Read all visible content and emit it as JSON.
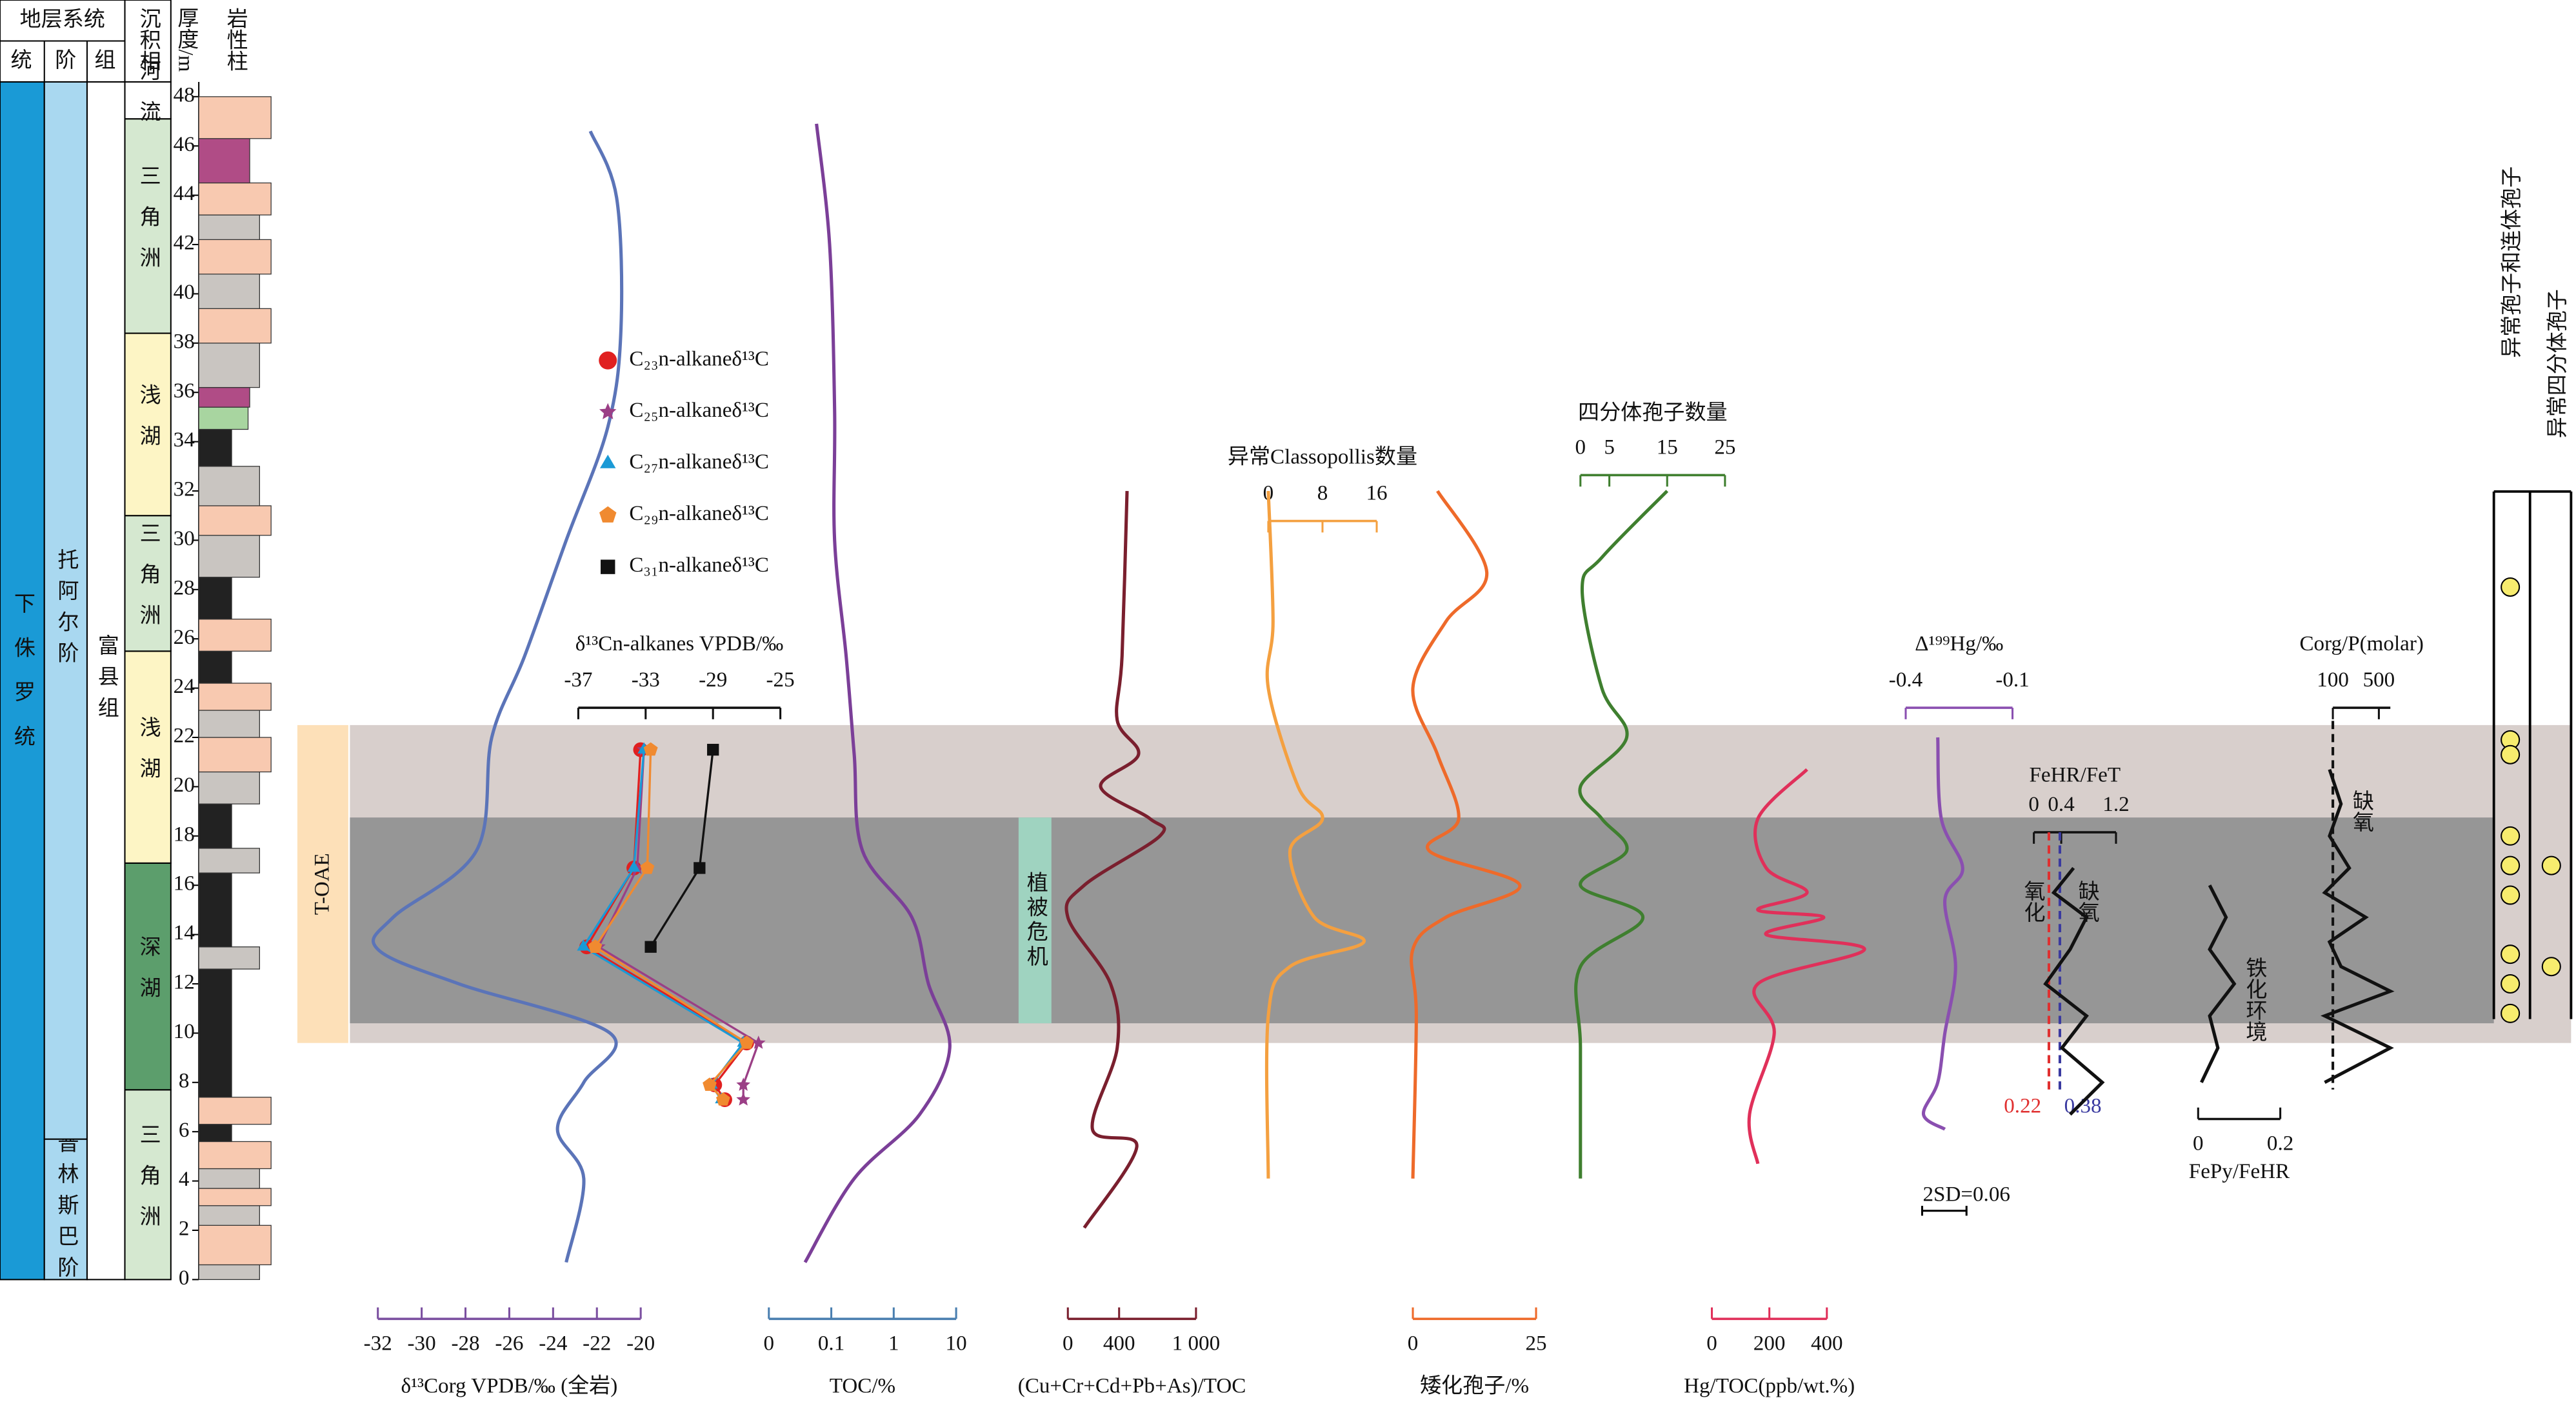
{
  "strat_column": {
    "header": {
      "system": "地层系统",
      "series": "统",
      "stage": "阶",
      "formation": "组",
      "facies": "沉积相",
      "thickness": "厚度/m",
      "lithology": "岩性柱"
    },
    "ylim": [
      0,
      48
    ],
    "yticks": [
      0,
      2,
      4,
      6,
      8,
      10,
      12,
      14,
      16,
      18,
      20,
      22,
      24,
      26,
      28,
      30,
      32,
      34,
      36,
      38,
      40,
      42,
      44,
      46,
      48
    ],
    "series": [
      {
        "label": "下侏罗统",
        "from": 0,
        "to": 48,
        "color": "#1a9ad6"
      }
    ],
    "stages": [
      {
        "label": "普林斯巴阶",
        "from": 0,
        "to": 5.7,
        "color": "#a9d8f0"
      },
      {
        "label": "托阿尔阶",
        "from": 5.7,
        "to": 48,
        "color": "#a9d8f0"
      }
    ],
    "formations": [
      {
        "label": "富县组",
        "from": 0,
        "to": 48,
        "color": "#ffffff"
      }
    ],
    "facies": [
      {
        "label": "三角洲",
        "from": 0,
        "to": 7.7,
        "color": "#d5e8d0"
      },
      {
        "label": "深湖",
        "from": 7.7,
        "to": 16.9,
        "color": "#5c9e6c"
      },
      {
        "label": "浅湖",
        "from": 16.9,
        "to": 25.5,
        "color": "#fdf5c5"
      },
      {
        "label": "三角洲",
        "from": 25.5,
        "to": 31,
        "color": "#d5e8d0"
      },
      {
        "label": "浅湖",
        "from": 31,
        "to": 38.4,
        "color": "#fdf5c5"
      },
      {
        "label": "三角洲",
        "from": 38.4,
        "to": 47.1,
        "color": "#d5e8d0"
      },
      {
        "label": "河流",
        "from": 47.1,
        "to": 48,
        "color": "#ffffff"
      }
    ],
    "lithology": [
      {
        "from": 0,
        "to": 0.6,
        "color": "#c9c5c1"
      },
      {
        "from": 0.6,
        "to": 2.2,
        "color": "#f8c9b0"
      },
      {
        "from": 2.2,
        "to": 3,
        "color": "#c9c5c1"
      },
      {
        "from": 3,
        "to": 3.7,
        "color": "#f8c9b0"
      },
      {
        "from": 3.7,
        "to": 4.5,
        "color": "#c9c5c1"
      },
      {
        "from": 4.5,
        "to": 5.6,
        "color": "#f8c9b0"
      },
      {
        "from": 5.6,
        "to": 6.3,
        "color": "#222222"
      },
      {
        "from": 6.3,
        "to": 7.4,
        "color": "#f8c9b0"
      },
      {
        "from": 7.4,
        "to": 12.6,
        "color": "#222222"
      },
      {
        "from": 12.6,
        "to": 13.5,
        "color": "#c9c5c1"
      },
      {
        "from": 13.5,
        "to": 16.5,
        "color": "#222222"
      },
      {
        "from": 16.5,
        "to": 17.5,
        "color": "#c9c5c1"
      },
      {
        "from": 17.5,
        "to": 19.3,
        "color": "#222222"
      },
      {
        "from": 19.3,
        "to": 20.6,
        "color": "#c9c5c1"
      },
      {
        "from": 20.6,
        "to": 22,
        "color": "#f8c9b0"
      },
      {
        "from": 22,
        "to": 23.1,
        "color": "#c9c5c1"
      },
      {
        "from": 23.1,
        "to": 24.2,
        "color": "#f8c9b0"
      },
      {
        "from": 24.2,
        "to": 25.5,
        "color": "#222222"
      },
      {
        "from": 25.5,
        "to": 26.8,
        "color": "#f8c9b0"
      },
      {
        "from": 26.8,
        "to": 28.5,
        "color": "#222222"
      },
      {
        "from": 28.5,
        "to": 30.2,
        "color": "#c9c5c1"
      },
      {
        "from": 30.2,
        "to": 31.4,
        "color": "#f8c9b0"
      },
      {
        "from": 31.4,
        "to": 33,
        "color": "#c9c5c1"
      },
      {
        "from": 33,
        "to": 34.5,
        "color": "#222222"
      },
      {
        "from": 34.5,
        "to": 35.4,
        "color": "#a8d5a0"
      },
      {
        "from": 35.4,
        "to": 36.2,
        "color": "#b04c86"
      },
      {
        "from": 36.2,
        "to": 38,
        "color": "#c9c5c1"
      },
      {
        "from": 38,
        "to": 39.4,
        "color": "#f8c9b0"
      },
      {
        "from": 39.4,
        "to": 40.8,
        "color": "#c9c5c1"
      },
      {
        "from": 40.8,
        "to": 42.2,
        "color": "#f8c9b0"
      },
      {
        "from": 42.2,
        "to": 43.2,
        "color": "#c9c5c1"
      },
      {
        "from": 43.2,
        "to": 44.5,
        "color": "#f8c9b0"
      },
      {
        "from": 44.5,
        "to": 46.3,
        "color": "#b04c86"
      },
      {
        "from": 46.3,
        "to": 48,
        "color": "#f8c9b0"
      }
    ]
  },
  "zones": {
    "toae": {
      "label": "T-OAE",
      "from": 9.6,
      "to": 22.5,
      "color": "#d8cfcc"
    },
    "crisis": {
      "label": "植被危机",
      "from": 10.4,
      "to": 18.75,
      "color": "#969696"
    }
  },
  "spores": {
    "color": "#f7ec6e",
    "columns": [
      {
        "label": "异常孢子和连体孢子",
        "depths": [
          28.1,
          21.9,
          21.3,
          18.0,
          16.8,
          15.6,
          13.2,
          12.0,
          10.8
        ]
      },
      {
        "label": "异常四分体孢子",
        "depths": [
          16.8,
          12.7
        ]
      }
    ]
  },
  "chart_data": [
    {
      "type": "line",
      "title": "δ¹³Corg VPDB/‰ (全岩)",
      "axis_color": "#7b4fa0",
      "xlim": [
        -32,
        -20
      ],
      "xticks": [
        -32,
        -30,
        -28,
        -26,
        -24,
        -22,
        -20
      ],
      "series": [
        {
          "color": "#5b74b8",
          "depth": [
            46.6,
            43.9,
            38.6,
            34.6,
            30.0,
            25.3,
            22.0,
            17.4,
            14.7,
            13.4,
            12.0,
            10.0,
            8.0,
            6.1,
            4.1,
            0.7
          ],
          "values": [
            -22.3,
            -21.1,
            -20.9,
            -21.5,
            -23.4,
            -25.3,
            -26.8,
            -27.5,
            -31.3,
            -32,
            -28.3,
            -21.4,
            -22.6,
            -23.8,
            -22.6,
            -23.4
          ]
        }
      ]
    },
    {
      "type": "scatter",
      "title": "δ¹³Cn-alkanes VPDB/‰",
      "axis_color": "#111111",
      "xlim": [
        -37,
        -25
      ],
      "xticks": [
        -37,
        -33,
        -29,
        -25
      ],
      "series": [
        {
          "name": "C₂₃n-alkaneδ¹³C",
          "color": "#e02020",
          "marker": "circle",
          "depth": [
            21.5,
            16.7,
            13.5,
            9.6,
            7.9,
            7.3
          ],
          "values": [
            -33.3,
            -33.7,
            -36.5,
            -27.0,
            -28.9,
            -28.3
          ]
        },
        {
          "name": "C₂₅n-alkaneδ¹³C",
          "color": "#9b3f86",
          "marker": "star",
          "depth": [
            21.5,
            16.7,
            13.5,
            9.6,
            7.9,
            7.3
          ],
          "values": [
            -33.1,
            -33.5,
            -35.8,
            -26.3,
            -27.2,
            -27.2
          ]
        },
        {
          "name": "C₂₇n-alkaneδ¹³C",
          "color": "#1a9ad6",
          "marker": "triangle",
          "depth": [
            21.5,
            16.7,
            13.5,
            9.6,
            7.9,
            7.3
          ],
          "values": [
            -33.1,
            -33.7,
            -36.7,
            -27.2,
            -29.1,
            -28.5
          ]
        },
        {
          "name": "C₂₉n-alkaneδ¹³C",
          "color": "#f08a30",
          "marker": "pentagon",
          "depth": [
            21.5,
            16.7,
            13.5,
            9.6,
            7.9,
            7.3
          ],
          "values": [
            -32.7,
            -32.9,
            -36.0,
            -27.0,
            -29.2,
            -28.4
          ]
        },
        {
          "name": "C₃₁n-alkaneδ¹³C",
          "color": "#111111",
          "marker": "square",
          "depth": [
            21.5,
            16.7,
            13.5
          ],
          "values": [
            -29.0,
            -29.8,
            -32.7
          ]
        }
      ]
    },
    {
      "type": "line",
      "title": "TOC/%",
      "axis_color": "#4a7fb0",
      "log": true,
      "xlim": [
        0.01,
        10
      ],
      "xticks": [
        {
          "value": 0.01,
          "label": "0"
        },
        0.1,
        1,
        10
      ],
      "series": [
        {
          "color": "#7b3f98",
          "depth": [
            46.9,
            42.0,
            35.3,
            30.0,
            25.3,
            21.3,
            17.4,
            14.7,
            12.0,
            9.4,
            6.7,
            4.1,
            0.7
          ],
          "values": [
            0.058,
            0.094,
            0.113,
            0.113,
            0.173,
            0.233,
            0.316,
            1.95,
            3.6,
            7.9,
            2.6,
            0.233,
            0.038
          ]
        }
      ]
    },
    {
      "type": "line",
      "title": "(Cu+Cr+Cd+Pb+As)/TOC",
      "axis_color": "#7a1f2e",
      "xlim": [
        0,
        1000
      ],
      "xticks": [
        0,
        400,
        {
          "value": 1000,
          "label": "1 000"
        }
      ],
      "series": [
        {
          "color": "#7a1f2e",
          "depth": [
            32.0,
            25.3,
            22.7,
            21.3,
            20.0,
            18.7,
            18.0,
            16.0,
            14.7,
            12.0,
            9.4,
            6.1,
            5.4,
            2.1
          ],
          "values": [
            462,
            423,
            385,
            551,
            256,
            641,
            718,
            128,
            0,
            333,
            385,
            192,
            538,
            128
          ]
        }
      ]
    },
    {
      "type": "line",
      "title": "异常Classopollis数量",
      "axis_color": "#f4a040",
      "xlim": [
        0,
        16
      ],
      "xticks": [
        0,
        8,
        16
      ],
      "series": [
        {
          "color": "#f4a040",
          "depth": [
            32.0,
            26.7,
            24.0,
            20.0,
            18.7,
            17.4,
            14.7,
            13.7,
            12.7,
            10.7,
            4.1
          ],
          "values": [
            0,
            0.7,
            0,
            4.4,
            8,
            3.2,
            6.8,
            14.1,
            3.2,
            0,
            0
          ]
        }
      ]
    },
    {
      "type": "line",
      "title": "矮化孢子/%",
      "axis_color": "#ee6a2a",
      "xlim": [
        0,
        25
      ],
      "xticks": [
        0,
        25
      ],
      "series": [
        {
          "color": "#ee6a2a",
          "depth": [
            32.0,
            28.7,
            26.7,
            24.0,
            21.3,
            18.7,
            17.4,
            16.0,
            14.7,
            13.4,
            10.7,
            4.1
          ],
          "values": [
            5,
            15,
            6.7,
            0,
            5,
            9.3,
            3.3,
            21.7,
            6.7,
            0,
            0.7,
            0
          ]
        }
      ]
    },
    {
      "type": "line",
      "title": "四分体孢子数量",
      "axis_color": "#3f7f2f",
      "xlim": [
        0,
        25
      ],
      "xticks": [
        0,
        5,
        15,
        25
      ],
      "series": [
        {
          "color": "#3f7f2f",
          "depth": [
            32.0,
            29.3,
            28.0,
            24.0,
            22.0,
            20.0,
            18.7,
            17.4,
            16.0,
            14.7,
            12.7,
            9.4,
            4.1
          ],
          "values": [
            15,
            3.7,
            0.3,
            3.7,
            8,
            0,
            3.7,
            8,
            0,
            10.8,
            0,
            0,
            0
          ]
        }
      ]
    },
    {
      "type": "line",
      "title": "Hg/TOC(ppb/wt.%)",
      "axis_color": "#e0305a",
      "xlim": [
        0,
        400
      ],
      "xticks": [
        0,
        200,
        400
      ],
      "series": [
        {
          "color": "#e0305a",
          "depth": [
            20.7,
            18.7,
            16.7,
            15.7,
            15.0,
            14.7,
            14.0,
            13.4,
            12.0,
            10.0,
            6.7,
            4.7
          ],
          "values": [
            331,
            160,
            189,
            331,
            160,
            389,
            189,
            531,
            160,
            217,
            131,
            160
          ]
        }
      ]
    },
    {
      "type": "line",
      "title": "Δ¹⁹⁹Hg/‰",
      "axis_color": "#8a4fb0",
      "xlim": [
        -0.4,
        -0.1
      ],
      "xticks": [
        -0.4,
        -0.1
      ],
      "notes": [
        "2SD=0.06"
      ],
      "series": [
        {
          "color": "#8a4fb0",
          "depth": [
            22.0,
            18.7,
            16.7,
            15.4,
            12.7,
            10.0,
            8.0,
            6.7,
            6.1
          ],
          "values": [
            -0.31,
            -0.3,
            -0.24,
            -0.29,
            -0.26,
            -0.29,
            -0.31,
            -0.35,
            -0.29
          ]
        }
      ]
    },
    {
      "type": "line",
      "title": "FeHR/FeT",
      "axis_color": "#111111",
      "xlim": [
        0,
        1.2
      ],
      "xticks": [
        0,
        0.4,
        1.2
      ],
      "notes": [
        "氧化",
        "缺氧"
      ],
      "thresholds": [
        {
          "value": 0.22,
          "color": "#e03030"
        },
        {
          "value": 0.38,
          "color": "#3a3aa0"
        }
      ],
      "series": [
        {
          "color": "#111111",
          "depth": [
            16.7,
            15.7,
            14.7,
            13.4,
            12.0,
            10.7,
            9.4,
            8.0,
            6.7
          ],
          "values": [
            0.58,
            0.29,
            0.77,
            0.53,
            0.17,
            0.77,
            0.41,
            1.0,
            0.53
          ]
        }
      ]
    },
    {
      "type": "line",
      "title": "FePy/FeHR",
      "axis_color": "#111111",
      "xlim": [
        0,
        0.2
      ],
      "xticks": [
        0,
        0.2
      ],
      "notes": [
        "铁化环境"
      ],
      "series": [
        {
          "color": "#111111",
          "depth": [
            16.0,
            14.7,
            13.4,
            12.0,
            10.7,
            9.4,
            8.0
          ],
          "values": [
            0.028,
            0.068,
            0.028,
            0.088,
            0.028,
            0.048,
            0.008
          ]
        }
      ]
    },
    {
      "type": "line",
      "title": "Corg/P(molar)",
      "axis_color": "#111111",
      "xlim": [
        100,
        600
      ],
      "xticks": [
        100,
        500
      ],
      "notes": [
        "缺氧"
      ],
      "thresholds": [
        {
          "value": 100,
          "color": "#111111"
        }
      ],
      "series": [
        {
          "color": "#111111",
          "depth": [
            20.7,
            19.3,
            18.0,
            16.7,
            15.7,
            14.7,
            13.7,
            12.7,
            11.7,
            10.7,
            9.4,
            8.0
          ],
          "values": [
            71,
            171,
            71,
            243,
            29,
            386,
            71,
            171,
            600,
            29,
            600,
            29
          ]
        }
      ]
    }
  ]
}
